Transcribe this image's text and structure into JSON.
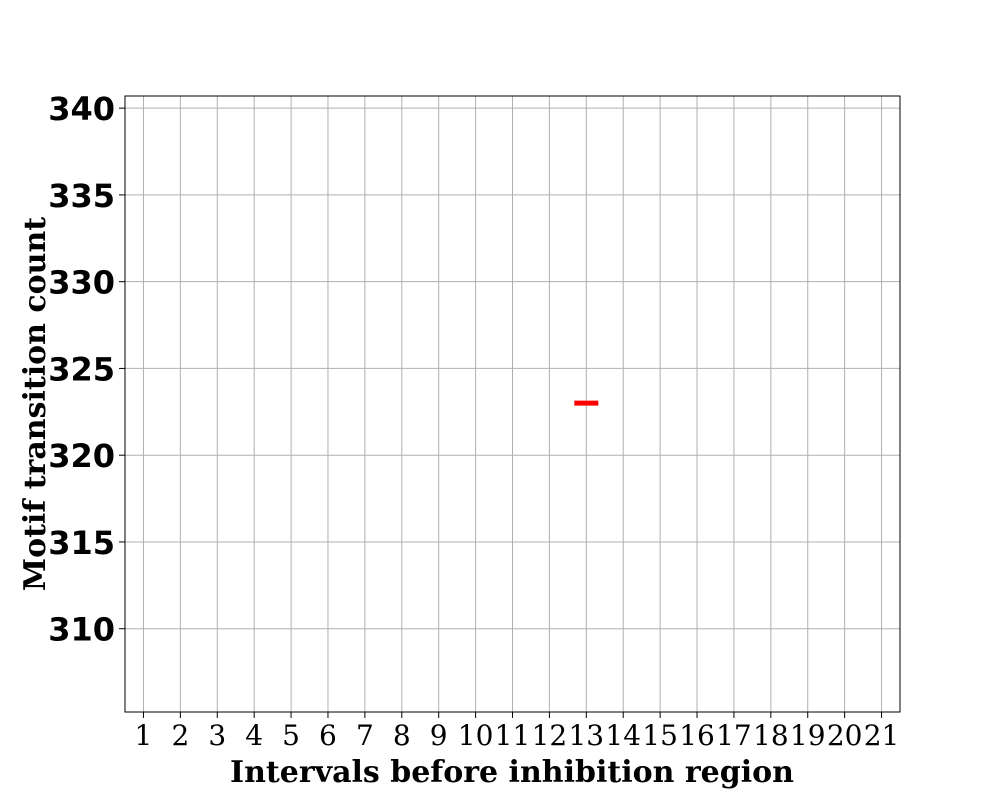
{
  "chart_data": {
    "type": "scatter",
    "xlabel": "Intervals before inhibition region",
    "ylabel": "Motif transition count",
    "x_ticks": [
      "1",
      "2",
      "3",
      "4",
      "5",
      "6",
      "7",
      "8",
      "9",
      "10",
      "11",
      "12",
      "13",
      "14",
      "15",
      "16",
      "17",
      "18",
      "19",
      "20",
      "21"
    ],
    "y_ticks": [
      310,
      315,
      320,
      325,
      330,
      335,
      340
    ],
    "xlim": [
      0.5,
      21.5
    ],
    "ylim": [
      305.2,
      340.7
    ],
    "grid": true,
    "series": [
      {
        "marker": "hline",
        "color": "#ff0000",
        "points": [
          {
            "x": 13,
            "y": 323
          }
        ]
      }
    ]
  }
}
